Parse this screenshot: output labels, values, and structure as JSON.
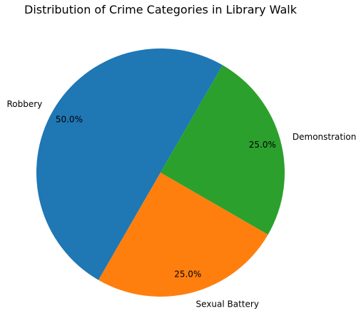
{
  "chart_data": {
    "type": "pie",
    "title": "Distribution of Crime Categories in Library Walk",
    "categories": [
      "Robbery",
      "Sexual Battery",
      "Demonstration"
    ],
    "values": [
      50.0,
      25.0,
      25.0
    ],
    "percent_labels": [
      "50.0%",
      "25.0%",
      "25.0%"
    ],
    "colors": [
      "#1f77b4",
      "#ff7f0e",
      "#2ca02c"
    ],
    "start_angle_deg": 60,
    "direction": "counterclockwise",
    "legend": "none"
  }
}
